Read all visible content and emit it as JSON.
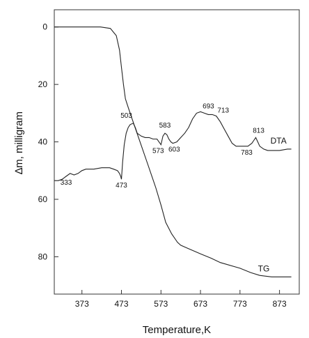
{
  "chart_data": {
    "type": "line",
    "title": "",
    "xlabel": "Temperature,K",
    "ylabel": "∆m, milligram",
    "xlim": [
      303,
      923
    ],
    "ylim": [
      93,
      -6
    ],
    "x_ticks": [
      373,
      473,
      573,
      673,
      773,
      873
    ],
    "y_ticks": [
      0,
      20,
      40,
      60,
      80
    ],
    "grid": false,
    "series": [
      {
        "name": "TG",
        "x": [
          303,
          373,
          420,
          445,
          460,
          468,
          473,
          478,
          483,
          490,
          500,
          520,
          540,
          560,
          573,
          585,
          600,
          615,
          623,
          640,
          673,
          700,
          723,
          773,
          800,
          823,
          853,
          873,
          903
        ],
        "y": [
          0,
          0,
          0,
          0.5,
          3,
          8,
          14,
          20,
          25,
          28,
          32,
          40,
          48,
          56,
          62,
          68,
          72,
          75,
          76,
          77,
          79,
          80.5,
          82,
          84,
          85.5,
          86.5,
          87,
          87,
          87
        ]
      },
      {
        "name": "DTA",
        "x": [
          303,
          313,
          323,
          333,
          343,
          353,
          363,
          373,
          383,
          403,
          423,
          443,
          453,
          463,
          468,
          471,
          473,
          476,
          480,
          485,
          490,
          495,
          503,
          508,
          513,
          523,
          533,
          543,
          553,
          563,
          573,
          578,
          583,
          588,
          593,
          598,
          603,
          613,
          623,
          633,
          643,
          653,
          663,
          673,
          683,
          693,
          703,
          713,
          723,
          733,
          743,
          753,
          763,
          773,
          783,
          793,
          803,
          808,
          813,
          818,
          823,
          833,
          843,
          853,
          873,
          893,
          903
        ],
        "y": [
          53.5,
          53.5,
          53,
          52,
          51,
          51.5,
          51,
          50,
          49.5,
          49.5,
          49,
          49,
          49.5,
          50,
          51,
          52,
          53,
          47,
          41,
          37,
          35,
          34,
          33.5,
          35,
          37,
          38,
          38.5,
          38.5,
          39,
          39,
          41,
          38,
          37,
          37.5,
          39,
          40,
          40.5,
          40,
          38.5,
          37,
          35,
          32,
          30,
          29.5,
          30,
          30.5,
          30.5,
          31,
          33,
          35.5,
          38,
          40.5,
          41.5,
          41.5,
          41.5,
          41.5,
          40.5,
          39.5,
          38.5,
          40,
          41.5,
          42.5,
          43,
          43,
          43,
          42.5,
          42.5
        ]
      }
    ],
    "series_labels": [
      "TG",
      "DTA"
    ],
    "annotations": [
      {
        "text": "333",
        "x": 333,
        "y": 52
      },
      {
        "text": "473",
        "x": 473,
        "y": 53
      },
      {
        "text": "503",
        "x": 503,
        "y": 33.5
      },
      {
        "text": "573",
        "x": 573,
        "y": 41
      },
      {
        "text": "583",
        "x": 583,
        "y": 37
      },
      {
        "text": "603",
        "x": 603,
        "y": 40.5
      },
      {
        "text": "693",
        "x": 693,
        "y": 30.5
      },
      {
        "text": "713",
        "x": 713,
        "y": 31
      },
      {
        "text": "783",
        "x": 783,
        "y": 41.5
      },
      {
        "text": "813",
        "x": 813,
        "y": 38.5
      }
    ]
  }
}
